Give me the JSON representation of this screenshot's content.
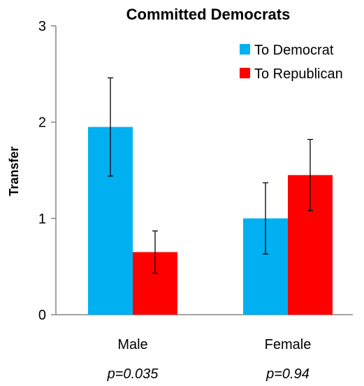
{
  "chart_data": {
    "type": "bar",
    "title": "Committed Democrats",
    "ylabel": "Transfer",
    "xlabel": "",
    "ylim": [
      0,
      3
    ],
    "yticks": [
      0,
      1,
      2,
      3
    ],
    "categories": [
      "Male",
      "Female"
    ],
    "annotations": [
      "p=0.035",
      "p=0.94"
    ],
    "series": [
      {
        "name": "To Democrat",
        "color": "#00b0f0",
        "values": [
          1.95,
          1.0
        ],
        "error_low": [
          1.44,
          0.63
        ],
        "error_high": [
          2.46,
          1.37
        ]
      },
      {
        "name": "To Republican",
        "color": "#ff0000",
        "values": [
          0.65,
          1.45
        ],
        "error_low": [
          0.43,
          1.08
        ],
        "error_high": [
          0.87,
          1.82
        ]
      }
    ],
    "legend": "top-right",
    "grid": false
  }
}
